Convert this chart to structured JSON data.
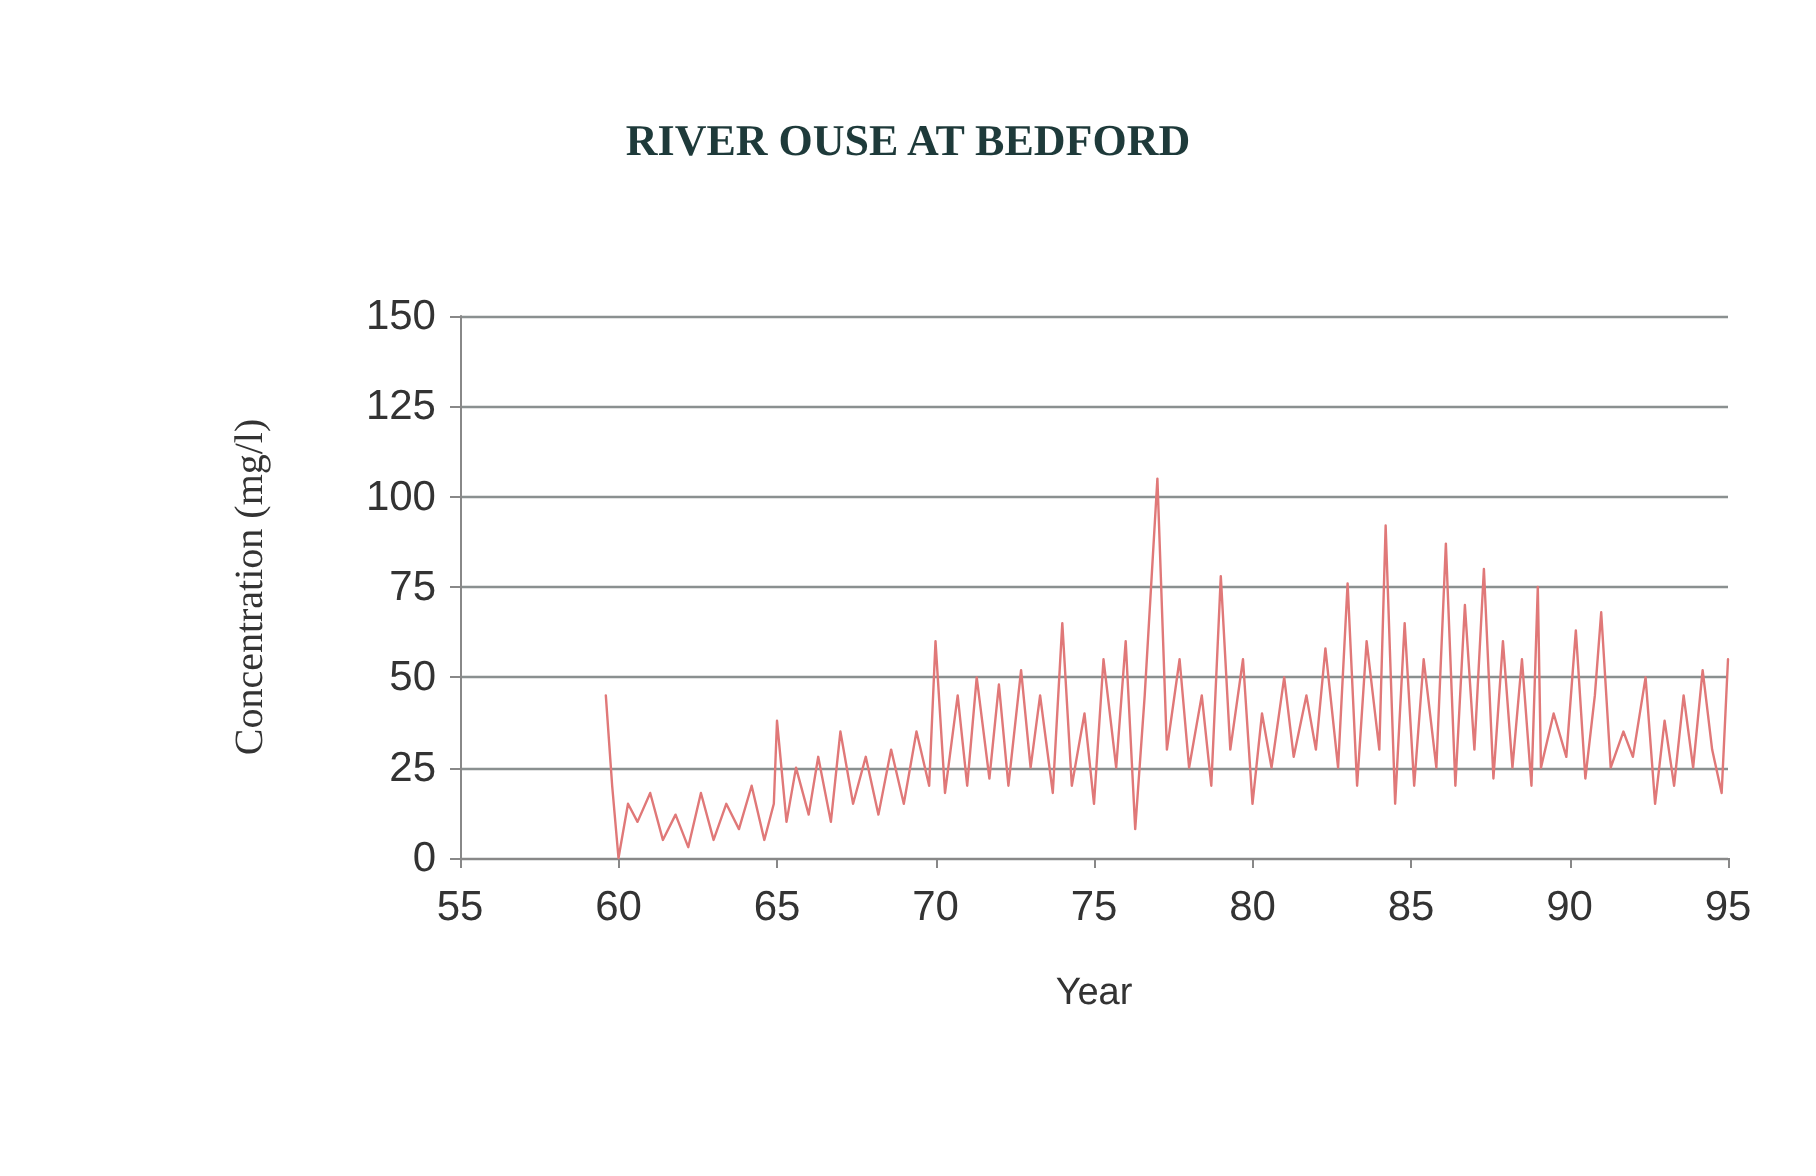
{
  "chart_data": {
    "type": "line",
    "title": "RIVER OUSE AT BEDFORD",
    "xlabel": "Year",
    "ylabel": "Concentration (mg/l)",
    "xlim": [
      55,
      95
    ],
    "xticks": [
      55,
      60,
      65,
      70,
      75,
      80,
      85,
      90,
      95
    ],
    "ylim": [
      0,
      150
    ],
    "yticks": [
      0,
      25,
      50,
      75,
      100,
      125,
      150
    ],
    "grid": "y",
    "marker": "none",
    "line_style": "solid",
    "series": [
      {
        "color": "#e07878",
        "x": [
          59.6,
          59.8,
          60.0,
          60.3,
          60.6,
          61.0,
          61.4,
          61.8,
          62.2,
          62.6,
          63.0,
          63.4,
          63.8,
          64.2,
          64.6,
          64.9,
          65.0,
          65.3,
          65.6,
          66.0,
          66.3,
          66.7,
          67.0,
          67.4,
          67.8,
          68.2,
          68.6,
          69.0,
          69.4,
          69.8,
          70.0,
          70.3,
          70.7,
          71.0,
          71.3,
          71.7,
          72.0,
          72.3,
          72.7,
          73.0,
          73.3,
          73.7,
          74.0,
          74.3,
          74.7,
          75.0,
          75.3,
          75.7,
          76.0,
          76.3,
          76.6,
          77.0,
          77.3,
          77.7,
          78.0,
          78.4,
          78.7,
          79.0,
          79.3,
          79.7,
          80.0,
          80.3,
          80.6,
          81.0,
          81.3,
          81.7,
          82.0,
          82.3,
          82.7,
          83.0,
          83.3,
          83.6,
          84.0,
          84.2,
          84.5,
          84.8,
          85.1,
          85.4,
          85.8,
          86.1,
          86.4,
          86.7,
          87.0,
          87.3,
          87.6,
          87.9,
          88.2,
          88.5,
          88.8,
          89.0,
          89.1,
          89.5,
          89.9,
          90.2,
          90.5,
          90.8,
          91.0,
          91.3,
          91.7,
          92.0,
          92.4,
          92.7,
          93.0,
          93.3,
          93.6,
          93.9,
          94.2,
          94.5,
          94.8,
          95.0
        ],
        "values": [
          45,
          20,
          0,
          15,
          10,
          18,
          5,
          12,
          3,
          18,
          5,
          15,
          8,
          20,
          5,
          15,
          38,
          10,
          25,
          12,
          28,
          10,
          35,
          15,
          28,
          12,
          30,
          15,
          35,
          20,
          60,
          18,
          45,
          20,
          50,
          22,
          48,
          20,
          52,
          25,
          45,
          18,
          65,
          20,
          40,
          15,
          55,
          25,
          60,
          8,
          45,
          105,
          30,
          55,
          25,
          45,
          20,
          78,
          30,
          55,
          15,
          40,
          25,
          50,
          28,
          45,
          30,
          58,
          25,
          76,
          20,
          60,
          30,
          92,
          15,
          65,
          20,
          55,
          25,
          87,
          20,
          70,
          30,
          80,
          22,
          60,
          25,
          55,
          20,
          75,
          25,
          40,
          28,
          63,
          22,
          45,
          68,
          25,
          35,
          28,
          50,
          15,
          38,
          20,
          45,
          25,
          52,
          30,
          18,
          55
        ]
      }
    ]
  }
}
